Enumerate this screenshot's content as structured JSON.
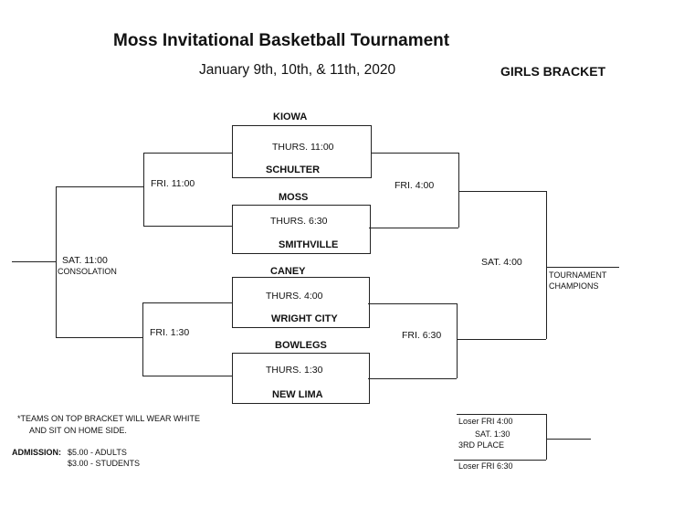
{
  "header": {
    "title": "Moss Invitational Basketball Tournament",
    "dates": "January 9th, 10th, & 11th, 2020",
    "bracket_label": "GIRLS BRACKET"
  },
  "first_round": [
    {
      "top_team": "KIOWA",
      "time": "THURS. 11:00",
      "bottom_team": "SCHULTER"
    },
    {
      "top_team": "MOSS",
      "time": "THURS. 6:30",
      "bottom_team": "SMITHVILLE"
    },
    {
      "top_team": "CANEY",
      "time": "THURS. 4:00",
      "bottom_team": "WRIGHT CITY"
    },
    {
      "top_team": "BOWLEGS",
      "time": "THURS. 1:30",
      "bottom_team": "NEW LIMA"
    }
  ],
  "consolation": {
    "fri_top": "FRI.  11:00",
    "fri_bottom": "FRI. 1:30",
    "sat_time": "SAT.  11:00",
    "sat_label": "CONSOLATION"
  },
  "championship": {
    "fri_top": "FRI.  4:00",
    "fri_bottom": "FRI.  6:30",
    "sat_time": "SAT.  4:00",
    "champions_line1": "TOURNAMENT",
    "champions_line2": "CHAMPIONS"
  },
  "third_place": {
    "top": "Loser FRI 4:00",
    "time": "SAT.  1:30",
    "label": "3RD PLACE",
    "bottom": "Loser FRI 6:30"
  },
  "notes": {
    "line1": "*TEAMS ON TOP BRACKET WILL WEAR WHITE",
    "line2": "AND SIT ON HOME SIDE.",
    "admission_label": "ADMISSION:",
    "adults": "$5.00 -  ADULTS",
    "students": "$3.00 - STUDENTS"
  }
}
